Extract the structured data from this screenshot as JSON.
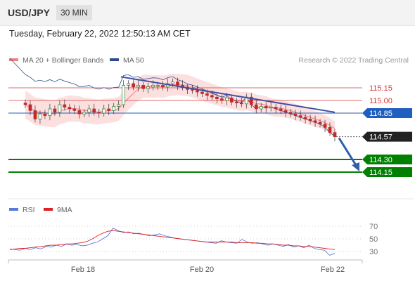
{
  "header": {
    "pair": "USD/JPY",
    "timeframe": "30 MIN"
  },
  "datetime": "Tuesday, February 22, 2022 12:50:13 AM CET",
  "legend": {
    "ma20_label": "MA 20 + Bollinger Bands",
    "ma50_label": "MA 50",
    "credit": "Research © 2022 Trading Central",
    "rsi_label": "RSI",
    "ma9_label": "9MA"
  },
  "colors": {
    "ma20": "#f08080",
    "bands": "#fbdada",
    "ma50": "#2e4a8c",
    "support": "#008000",
    "pivot": "#1f5fbf",
    "resistance": "#d83a3a",
    "current": "#222222",
    "candle_up": "#2e7d32",
    "candle_down": "#c62828",
    "rsi": "#5a78d6",
    "rsi_ma": "#e02020"
  },
  "chart_data": {
    "type": "candlestick",
    "x_ticks": [
      "Feb 18",
      "Feb 20",
      "Feb 22"
    ],
    "price_levels": [
      {
        "value": 115.15,
        "label": "115.15",
        "kind": "resistance"
      },
      {
        "value": 115.0,
        "label": "115.00",
        "kind": "resistance"
      },
      {
        "value": 114.85,
        "label": "114.85",
        "kind": "pivot"
      },
      {
        "value": 114.57,
        "label": "114.57",
        "kind": "current"
      },
      {
        "value": 114.3,
        "label": "114.30",
        "kind": "support"
      },
      {
        "value": 114.15,
        "label": "114.15",
        "kind": "support"
      }
    ],
    "price_range": [
      114.12,
      116.0
    ],
    "close": [
      114.95,
      114.88,
      114.78,
      114.84,
      114.82,
      114.9,
      114.86,
      114.95,
      114.92,
      114.9,
      114.88,
      114.84,
      114.86,
      114.9,
      114.86,
      114.85,
      114.9,
      114.88,
      114.93,
      114.95,
      115.18,
      115.2,
      115.16,
      115.18,
      115.14,
      115.16,
      115.18,
      115.18,
      115.16,
      115.2,
      115.22,
      115.18,
      115.16,
      115.13,
      115.12,
      115.1,
      115.08,
      115.06,
      115.04,
      115.02,
      115.0,
      115.03,
      114.98,
      114.97,
      114.96,
      115.04,
      114.95,
      114.9,
      114.93,
      114.91,
      114.92,
      114.9,
      114.88,
      114.86,
      114.84,
      114.82,
      114.8,
      114.78,
      114.76,
      114.74,
      114.72,
      114.68,
      114.62,
      114.57
    ],
    "ma50_start": 115.5,
    "trendline": {
      "from": 115.28,
      "to": 114.86
    },
    "arrow_target": 114.15,
    "rsi": {
      "ticks": [
        70,
        50,
        30
      ],
      "range": [
        20,
        80
      ],
      "values": [
        34,
        33,
        32,
        35,
        33,
        36,
        34,
        38,
        37,
        40,
        38,
        42,
        40,
        41,
        39,
        40,
        43,
        45,
        50,
        55,
        67,
        63,
        60,
        61,
        58,
        59,
        57,
        55,
        56,
        58,
        55,
        53,
        51,
        50,
        49,
        48,
        47,
        46,
        45,
        44,
        43,
        47,
        45,
        44,
        43,
        49,
        45,
        43,
        44,
        42,
        40,
        42,
        40,
        38,
        41,
        37,
        39,
        36,
        40,
        35,
        33,
        32,
        24,
        27
      ],
      "ma9": [
        33,
        34,
        35,
        35,
        36,
        37,
        38,
        39,
        40,
        40,
        41,
        42,
        42,
        43,
        44,
        46,
        50,
        55,
        59,
        62,
        63,
        62,
        61,
        60,
        59,
        58,
        57,
        56,
        55,
        54,
        53,
        52,
        51,
        50,
        49,
        48,
        47,
        46,
        45,
        45,
        45,
        45,
        45,
        45,
        44,
        44,
        44,
        44,
        43,
        43,
        42,
        42,
        41,
        40,
        40,
        39,
        39,
        38,
        38,
        37,
        36,
        35,
        34,
        33
      ]
    }
  }
}
